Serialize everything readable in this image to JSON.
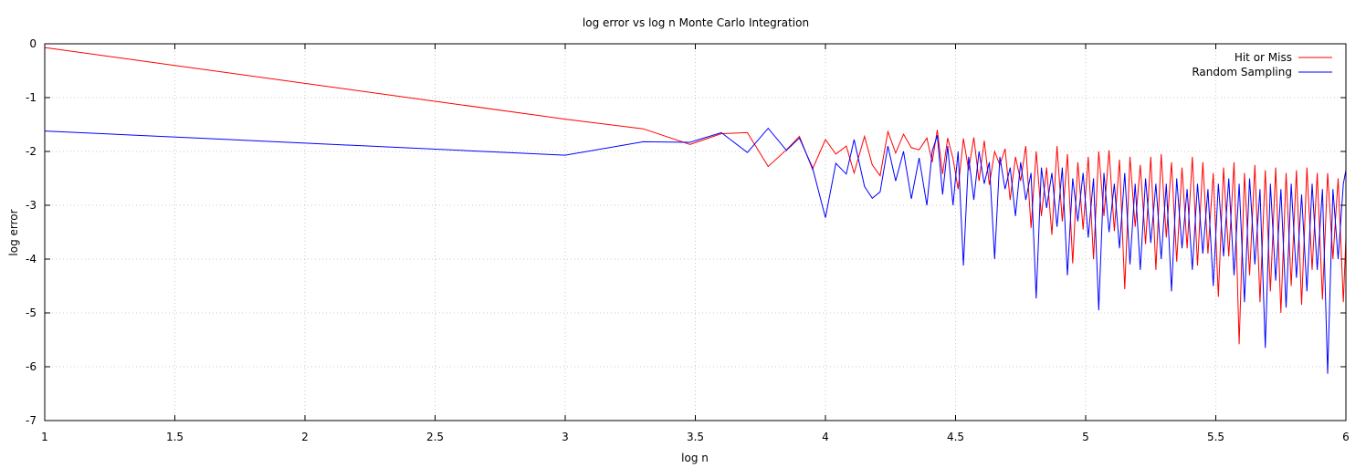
{
  "chart_data": {
    "type": "line",
    "title": "log error vs log n Monte Carlo Integration",
    "xlabel": "log n",
    "ylabel": "log error",
    "xlim": [
      1,
      6
    ],
    "ylim": [
      -7,
      0
    ],
    "xticks": [
      {
        "value": 1,
        "label": "1"
      },
      {
        "value": 1.5,
        "label": "1.5"
      },
      {
        "value": 2,
        "label": "2"
      },
      {
        "value": 2.5,
        "label": "2.5"
      },
      {
        "value": 3,
        "label": "3"
      },
      {
        "value": 3.5,
        "label": "3.5"
      },
      {
        "value": 4,
        "label": "4"
      },
      {
        "value": 4.5,
        "label": "4.5"
      },
      {
        "value": 5,
        "label": "5"
      },
      {
        "value": 5.5,
        "label": "5.5"
      },
      {
        "value": 6,
        "label": "6"
      }
    ],
    "yticks": [
      {
        "value": 0,
        "label": "0"
      },
      {
        "value": -1,
        "label": "-1"
      },
      {
        "value": -2,
        "label": "-2"
      },
      {
        "value": -3,
        "label": "-3"
      },
      {
        "value": -4,
        "label": "-4"
      },
      {
        "value": -5,
        "label": "-5"
      },
      {
        "value": -6,
        "label": "-6"
      },
      {
        "value": -7,
        "label": "-7"
      }
    ],
    "grid": true,
    "legend_position": "top-right",
    "series": [
      {
        "name": "Hit or Miss",
        "color": "#ff0000",
        "x": [
          1.0,
          3.0,
          3.3,
          3.48,
          3.6,
          3.7,
          3.78,
          3.85,
          3.9,
          3.95,
          4.0,
          4.04,
          4.08,
          4.11,
          4.15,
          4.18,
          4.21,
          4.24,
          4.27,
          4.3,
          4.33,
          4.36,
          4.39,
          4.41,
          4.43,
          4.45,
          4.47,
          4.49,
          4.51,
          4.53,
          4.55,
          4.57,
          4.59,
          4.61,
          4.63,
          4.65,
          4.67,
          4.69,
          4.71,
          4.73,
          4.75,
          4.77,
          4.79,
          4.81,
          4.83,
          4.85,
          4.87,
          4.89,
          4.91,
          4.93,
          4.95,
          4.97,
          4.99,
          5.01,
          5.03,
          5.05,
          5.07,
          5.09,
          5.11,
          5.13,
          5.15,
          5.17,
          5.19,
          5.21,
          5.23,
          5.25,
          5.27,
          5.29,
          5.31,
          5.33,
          5.35,
          5.37,
          5.39,
          5.41,
          5.43,
          5.45,
          5.47,
          5.49,
          5.51,
          5.53,
          5.55,
          5.57,
          5.59,
          5.61,
          5.63,
          5.65,
          5.67,
          5.69,
          5.71,
          5.73,
          5.75,
          5.77,
          5.79,
          5.81,
          5.83,
          5.85,
          5.87,
          5.89,
          5.91,
          5.93,
          5.95,
          5.97,
          5.99,
          6.0
        ],
        "y": [
          -0.07,
          -1.4,
          -1.58,
          -1.87,
          -1.67,
          -1.65,
          -2.28,
          -1.97,
          -1.72,
          -2.33,
          -1.78,
          -2.05,
          -1.9,
          -2.4,
          -1.72,
          -2.25,
          -2.45,
          -1.63,
          -2.03,
          -1.68,
          -1.93,
          -1.97,
          -1.75,
          -2.2,
          -1.6,
          -2.42,
          -1.75,
          -2.13,
          -2.7,
          -1.76,
          -2.35,
          -1.74,
          -2.55,
          -1.8,
          -2.62,
          -2.0,
          -2.25,
          -1.95,
          -2.9,
          -2.1,
          -2.55,
          -1.9,
          -3.42,
          -2.0,
          -3.2,
          -2.3,
          -3.55,
          -1.9,
          -3.3,
          -2.05,
          -4.08,
          -2.2,
          -3.45,
          -2.1,
          -4.0,
          -2.0,
          -3.2,
          -1.98,
          -3.48,
          -2.15,
          -4.56,
          -2.1,
          -3.4,
          -2.25,
          -3.72,
          -2.1,
          -4.2,
          -2.05,
          -3.6,
          -2.2,
          -4.05,
          -2.3,
          -3.8,
          -2.1,
          -4.12,
          -2.2,
          -3.9,
          -2.4,
          -4.7,
          -2.3,
          -3.95,
          -2.2,
          -5.58,
          -2.4,
          -4.3,
          -2.25,
          -4.8,
          -2.35,
          -4.6,
          -2.3,
          -5.0,
          -2.4,
          -4.5,
          -2.35,
          -4.85,
          -2.3,
          -4.2,
          -2.4,
          -4.75,
          -2.4,
          -4.0,
          -2.5,
          -4.8,
          -3.6
        ]
      },
      {
        "name": "Random Sampling",
        "color": "#0000ff",
        "x": [
          1.0,
          3.0,
          3.3,
          3.48,
          3.6,
          3.7,
          3.78,
          3.85,
          3.9,
          3.95,
          4.0,
          4.04,
          4.08,
          4.11,
          4.15,
          4.18,
          4.21,
          4.24,
          4.27,
          4.3,
          4.33,
          4.36,
          4.39,
          4.41,
          4.43,
          4.45,
          4.47,
          4.49,
          4.51,
          4.53,
          4.55,
          4.57,
          4.59,
          4.61,
          4.63,
          4.65,
          4.67,
          4.69,
          4.71,
          4.73,
          4.75,
          4.77,
          4.79,
          4.81,
          4.83,
          4.85,
          4.87,
          4.89,
          4.91,
          4.93,
          4.95,
          4.97,
          4.99,
          5.01,
          5.03,
          5.05,
          5.07,
          5.09,
          5.11,
          5.13,
          5.15,
          5.17,
          5.19,
          5.21,
          5.23,
          5.25,
          5.27,
          5.29,
          5.31,
          5.33,
          5.35,
          5.37,
          5.39,
          5.41,
          5.43,
          5.45,
          5.47,
          5.49,
          5.51,
          5.53,
          5.55,
          5.57,
          5.59,
          5.61,
          5.63,
          5.65,
          5.67,
          5.69,
          5.71,
          5.73,
          5.75,
          5.77,
          5.79,
          5.81,
          5.83,
          5.85,
          5.87,
          5.89,
          5.91,
          5.93,
          5.95,
          5.97,
          5.99,
          6.0
        ],
        "y": [
          -1.62,
          -2.07,
          -1.82,
          -1.83,
          -1.65,
          -2.02,
          -1.57,
          -1.98,
          -1.75,
          -2.3,
          -3.23,
          -2.22,
          -2.42,
          -1.78,
          -2.65,
          -2.87,
          -2.75,
          -1.9,
          -2.55,
          -2.0,
          -2.88,
          -2.12,
          -3.0,
          -2.0,
          -1.7,
          -2.8,
          -1.9,
          -3.0,
          -2.0,
          -4.12,
          -2.1,
          -2.9,
          -2.0,
          -2.6,
          -2.2,
          -4.0,
          -2.1,
          -2.7,
          -2.3,
          -3.2,
          -2.2,
          -2.9,
          -2.4,
          -4.73,
          -2.3,
          -3.05,
          -2.4,
          -3.4,
          -2.3,
          -4.3,
          -2.5,
          -3.3,
          -2.4,
          -3.6,
          -2.5,
          -4.95,
          -2.4,
          -3.5,
          -2.6,
          -3.8,
          -2.4,
          -4.1,
          -2.6,
          -4.2,
          -2.5,
          -3.7,
          -2.6,
          -4.0,
          -2.6,
          -4.6,
          -2.5,
          -3.8,
          -2.7,
          -4.2,
          -2.6,
          -3.9,
          -2.7,
          -4.5,
          -2.6,
          -3.95,
          -2.5,
          -4.3,
          -2.6,
          -4.8,
          -2.5,
          -4.1,
          -2.7,
          -5.65,
          -2.6,
          -4.4,
          -2.7,
          -4.9,
          -2.6,
          -4.35,
          -2.8,
          -4.6,
          -2.6,
          -4.2,
          -2.7,
          -6.13,
          -2.7,
          -4.0,
          -2.6,
          -2.35
        ]
      }
    ]
  }
}
